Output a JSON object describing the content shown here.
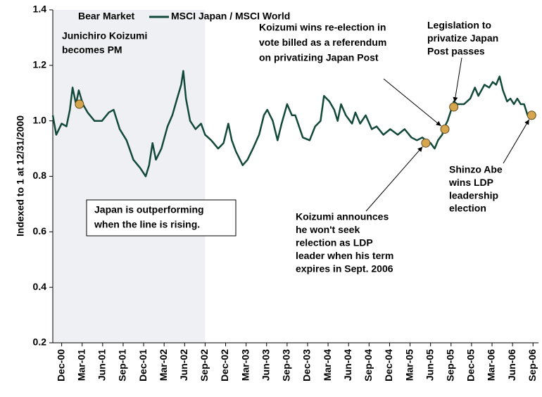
{
  "chart_data": {
    "type": "line",
    "ylabel": "Indexed to 1 at 12/31/2000",
    "xlim": [
      -1.3,
      69.8
    ],
    "ylim": [
      0.2,
      1.4
    ],
    "yticks": [
      0.2,
      0.4,
      0.6,
      0.8,
      {
        "value": 1,
        "label": "1.0"
      },
      1.2,
      1.4
    ],
    "xticks": [
      {
        "value": 0,
        "label": "Dec-00"
      },
      {
        "value": 3,
        "label": "Mar-01"
      },
      {
        "value": 6,
        "label": "Jun-01"
      },
      {
        "value": 9,
        "label": "Sep-01"
      },
      {
        "value": 12,
        "label": "Dec-01"
      },
      {
        "value": 15,
        "label": "Mar-02"
      },
      {
        "value": 18,
        "label": "Jun-02"
      },
      {
        "value": 21,
        "label": "Sep-02"
      },
      {
        "value": 24,
        "label": "Dec-02"
      },
      {
        "value": 27,
        "label": "Mar-03"
      },
      {
        "value": 30,
        "label": "Jun-03"
      },
      {
        "value": 33,
        "label": "Sep-03"
      },
      {
        "value": 36,
        "label": "Dec-03"
      },
      {
        "value": 39,
        "label": "Mar-04"
      },
      {
        "value": 42,
        "label": "Jun-04"
      },
      {
        "value": 45,
        "label": "Sep-04"
      },
      {
        "value": 48,
        "label": "Dec-04"
      },
      {
        "value": 51,
        "label": "Mar-05"
      },
      {
        "value": 54,
        "label": "Jun-05"
      },
      {
        "value": 57,
        "label": "Sep-05"
      },
      {
        "value": 60,
        "label": "Dec-05"
      },
      {
        "value": 63,
        "label": "Mar-06"
      },
      {
        "value": 66,
        "label": "Jun-06"
      },
      {
        "value": 69,
        "label": "Sep-06"
      }
    ],
    "bear_market": {
      "name": "Bear Market",
      "color": "#eef0f4",
      "range": [
        -1.3,
        21
      ]
    },
    "series": [
      {
        "name": "MSCI Japan / MSCI World",
        "color": "#13493a",
        "x": [
          -1.3,
          -0.8,
          0,
          0.7,
          1.2,
          1.6,
          2.1,
          2.5,
          3.1,
          3.8,
          4.8,
          5.9,
          6.9,
          7.6,
          8.5,
          9.5,
          10.5,
          11.5,
          12.3,
          12.8,
          13.3,
          13.8,
          14.6,
          15.5,
          16.2,
          16.9,
          17.5,
          17.8,
          18.2,
          18.8,
          19.6,
          20.4,
          21.0,
          21.9,
          22.9,
          23.7,
          24.4,
          24.9,
          25.5,
          26.5,
          27.2,
          28.0,
          28.9,
          29.6,
          30.1,
          30.9,
          31.6,
          32.2,
          33.0,
          33.7,
          34.2,
          35.3,
          36.3,
          37.1,
          37.9,
          38.4,
          39.2,
          39.9,
          40.4,
          40.9,
          41.6,
          42.5,
          43.0,
          43.7,
          44.5,
          45.4,
          46.1,
          47.1,
          48.1,
          49.2,
          50.2,
          51.2,
          52.0,
          52.8,
          53.3,
          54.0,
          54.6,
          55.1,
          55.7,
          56.1,
          56.5,
          56.9,
          57.4,
          57.9,
          58.9,
          59.8,
          60.5,
          61.0,
          61.9,
          62.6,
          63.1,
          63.6,
          64.1,
          64.6,
          65.2,
          65.7,
          66.2,
          66.7,
          67.2,
          67.7,
          68.2,
          68.8,
          69.3
        ],
        "values": [
          1.02,
          0.95,
          0.99,
          0.98,
          1.04,
          1.12,
          1.06,
          1.11,
          1.06,
          1.03,
          1.0,
          1.0,
          1.03,
          1.04,
          0.97,
          0.93,
          0.86,
          0.83,
          0.8,
          0.84,
          0.92,
          0.86,
          0.9,
          0.98,
          1.02,
          1.08,
          1.13,
          1.18,
          1.08,
          1.0,
          0.97,
          0.99,
          0.95,
          0.93,
          0.9,
          0.92,
          0.99,
          0.93,
          0.89,
          0.84,
          0.86,
          0.9,
          0.95,
          1.02,
          1.04,
          1.0,
          0.93,
          0.99,
          1.06,
          1.02,
          1.02,
          0.94,
          0.93,
          0.98,
          1.0,
          1.09,
          1.07,
          1.04,
          1.0,
          1.06,
          1.02,
          0.99,
          1.03,
          0.99,
          1.02,
          0.97,
          0.98,
          0.95,
          0.97,
          0.95,
          0.97,
          0.94,
          0.93,
          0.94,
          0.93,
          0.92,
          0.9,
          0.93,
          0.95,
          0.98,
          1.0,
          1.03,
          1.07,
          1.06,
          1.06,
          1.08,
          1.12,
          1.09,
          1.13,
          1.12,
          1.14,
          1.13,
          1.16,
          1.11,
          1.07,
          1.08,
          1.06,
          1.08,
          1.06,
          1.06,
          1.02,
          1.02,
          1.03
        ]
      }
    ],
    "events": [
      {
        "label": [
          "Junichiro Koizumi",
          "becomes PM"
        ],
        "x": 2.6,
        "y": 1.06
      },
      {
        "label": [
          "Koizumi announces",
          "he won't seek",
          "relection as LDP",
          "leader when his term",
          "expires in Sept. 2006"
        ],
        "x": 53.3,
        "y": 0.92
      },
      {
        "label": [
          "Koizumi wins re-election in",
          "vote billed as a referendum",
          "on privatizing Japan Post"
        ],
        "x": 56.1,
        "y": 0.97
      },
      {
        "label": [
          "Legislation to",
          "privatize Japan",
          "Post passes"
        ],
        "x": 57.4,
        "y": 1.05
      },
      {
        "label": [
          "Shinzo Abe",
          "wins LDP",
          "leadership",
          "election"
        ],
        "x": 68.8,
        "y": 1.02
      }
    ],
    "marker_color": "#d6a64f",
    "note": [
      "Japan is outperforming",
      "when the line is rising."
    ]
  }
}
